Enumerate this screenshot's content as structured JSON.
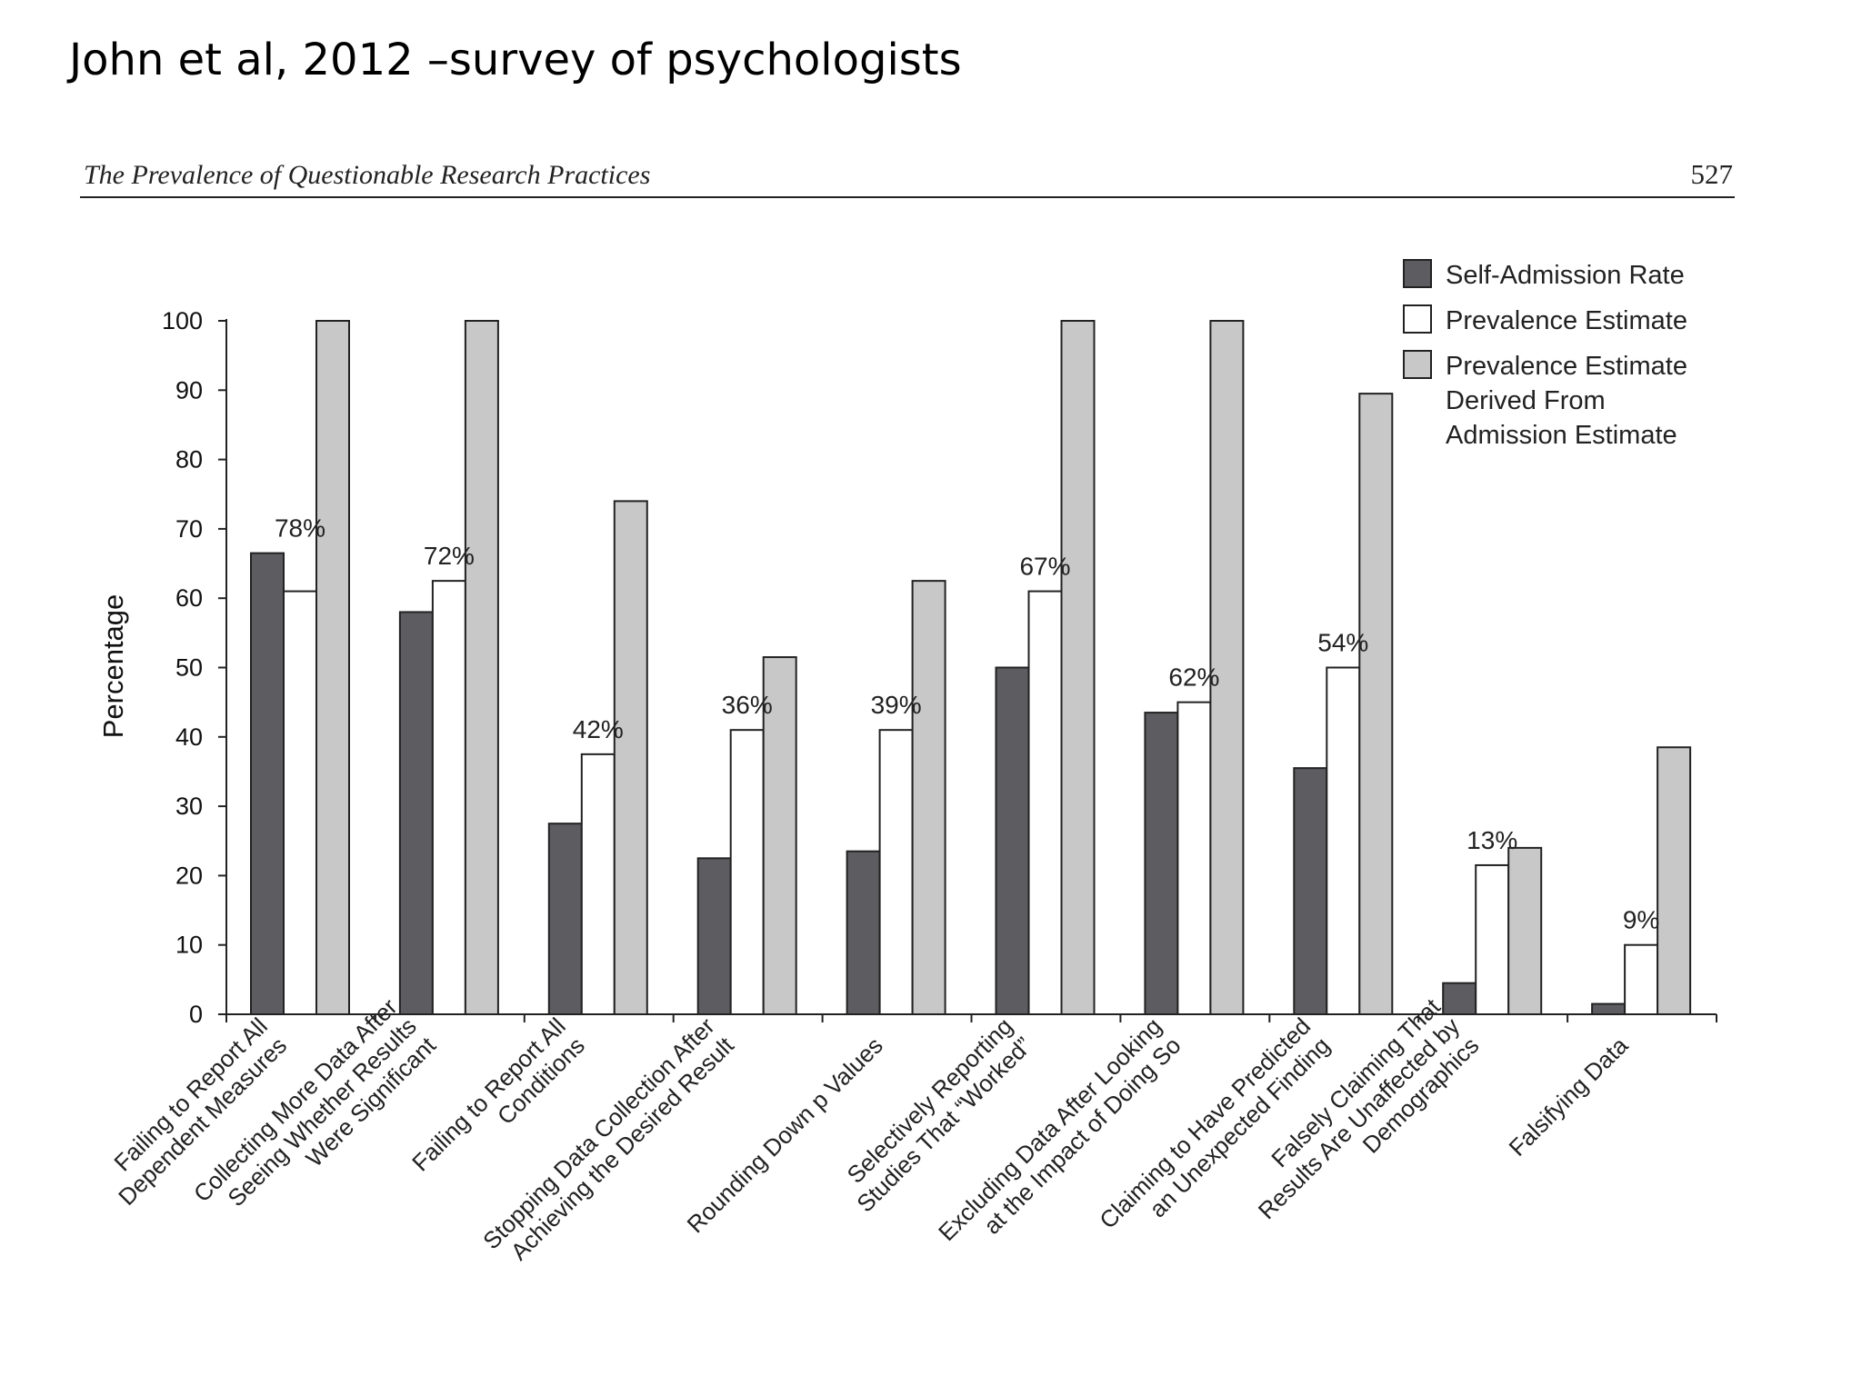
{
  "slide": {
    "title": "John et al, 2012 –survey of psychologists"
  },
  "figure_header": {
    "running_title": "The Prevalence of Questionable Research Practices",
    "page_number": "527"
  },
  "chart_data": {
    "type": "bar",
    "ylabel": "Percentage",
    "ylim": [
      0,
      100
    ],
    "yticks": [
      0,
      10,
      20,
      30,
      40,
      50,
      60,
      70,
      80,
      90,
      100
    ],
    "grid": false,
    "legend_position": "top-right",
    "categories": [
      [
        "Failing to Report All",
        "Dependent Measures"
      ],
      [
        "Collecting More Data After",
        "Seeing Whether Results",
        "Were Significant"
      ],
      [
        "Failing to Report All",
        "Conditions"
      ],
      [
        "Stopping Data Collection After",
        "Achieving the Desired Result"
      ],
      [
        "Rounding Down p Values"
      ],
      [
        "Selectively Reporting",
        "Studies That “Worked”"
      ],
      [
        "Excluding Data After Looking",
        "at the Impact of Doing So"
      ],
      [
        "Claiming to Have Predicted",
        "an Unexpected Finding"
      ],
      [
        "Falsely Claiming That",
        "Results Are Unaffected by",
        "Demographics"
      ],
      [
        "Falsifying Data"
      ]
    ],
    "series": [
      {
        "name": "Self-Admission Rate",
        "color": "#5d5c61",
        "values": [
          66.5,
          58,
          27.5,
          22.5,
          23.5,
          50,
          43.5,
          35.5,
          4.5,
          1.5
        ]
      },
      {
        "name": "Prevalence Estimate",
        "color": "#ffffff",
        "values": [
          61,
          62.5,
          37.5,
          41,
          41,
          61,
          45,
          50,
          21.5,
          10
        ]
      },
      {
        "name": "Prevalence Estimate Derived From Admission Estimate",
        "legend_lines": [
          "Prevalence Estimate",
          "Derived From",
          "Admission Estimate"
        ],
        "color": "#c8c8c8",
        "values": [
          100,
          100,
          74,
          51.5,
          62.5,
          100,
          100,
          89.5,
          24,
          38.5
        ]
      }
    ],
    "annotations": [
      "78%",
      "72%",
      "42%",
      "36%",
      "39%",
      "67%",
      "62%",
      "54%",
      "13%",
      "9%"
    ]
  }
}
